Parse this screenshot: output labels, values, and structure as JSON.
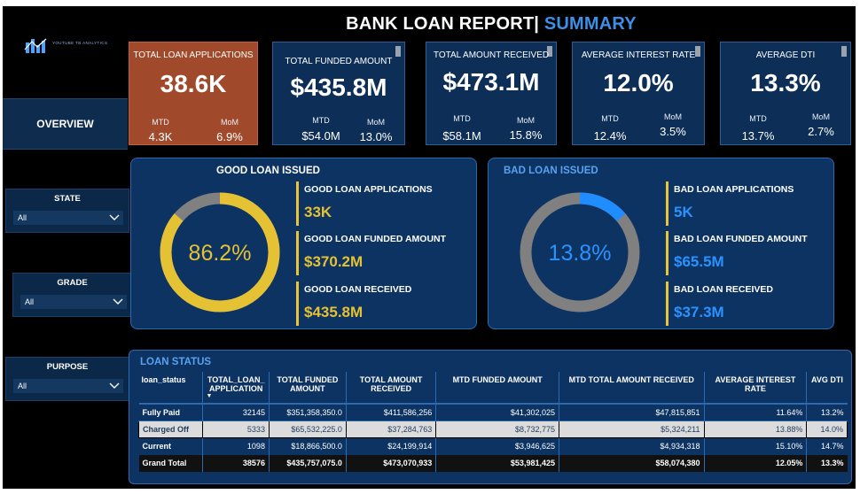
{
  "header": {
    "title_main": "BANK LOAN REPORT|",
    "title_accent": "SUMMARY"
  },
  "logo": {
    "brand_text": "YOUTUBE TB ANALYTICS"
  },
  "nav": {
    "overview_label": "OVERVIEW"
  },
  "filters": [
    {
      "label": "STATE",
      "value": "All"
    },
    {
      "label": "GRADE",
      "value": "All"
    },
    {
      "label": "PURPOSE",
      "value": "All"
    }
  ],
  "kpis": [
    {
      "label": "TOTAL LOAN APPLICATIONS",
      "value": "38.6K",
      "mtd_label": "MTD",
      "mtd_value": "4.3K",
      "mom_label": "MoM",
      "mom_value": "6.9%"
    },
    {
      "label": "TOTAL FUNDED AMOUNT",
      "value": "$435.8M",
      "mtd_label": "MTD",
      "mtd_value": "$54.0M",
      "mom_label": "MoM",
      "mom_value": "13.0%"
    },
    {
      "label": "TOTAL  AMOUNT RECEIVED",
      "value": "$473.1M",
      "mtd_label": "MTD",
      "mtd_value": "$58.1M",
      "mom_label": "MoM",
      "mom_value": "15.8%"
    },
    {
      "label": "AVERAGE INTEREST RATE",
      "value": "12.0%",
      "mtd_label": "MTD",
      "mtd_value": "12.4%",
      "mom_label": "MoM",
      "mom_value": "3.5%"
    },
    {
      "label": "AVERAGE DTI",
      "value": "13.3%",
      "mtd_label": "MTD",
      "mtd_value": "13.7%",
      "mom_label": "MoM",
      "mom_value": "2.7%"
    }
  ],
  "good_loan": {
    "title": "GOOD LOAN ISSUED",
    "percent_label": "86.2%",
    "percent": 86.2,
    "ring_color": "#e5c234",
    "rest_color": "#808080",
    "metrics": [
      {
        "label": "GOOD LOAN APPLICATIONS",
        "value": "33K"
      },
      {
        "label": "GOOD LOAN FUNDED AMOUNT",
        "value": "$370.2M"
      },
      {
        "label": "GOOD LOAN RECEIVED",
        "value": "$435.8M"
      }
    ]
  },
  "bad_loan": {
    "title": "BAD LOAN ISSUED",
    "percent_label": "13.8%",
    "percent": 13.8,
    "ring_color": "#1f8cff",
    "rest_color": "#808080",
    "metrics": [
      {
        "label": "BAD LOAN APPLICATIONS",
        "value": "5K"
      },
      {
        "label": "BAD LOAN FUNDED AMOUNT",
        "value": "$65.5M"
      },
      {
        "label": "BAD LOAN RECEIVED",
        "value": "$37.3M"
      }
    ]
  },
  "loan_status": {
    "title": "LOAN STATUS",
    "columns": [
      "loan_status",
      "TOTAL_LOAN_\nAPPLICATION",
      "TOTAL FUNDED\nAMOUNT",
      "TOTAL AMOUNT\nRECEIVED",
      "MTD FUNDED AMOUNT",
      "MTD TOTAL AMOUNT RECEIVED",
      "AVERAGE INTEREST\nRATE",
      "AVG DTI"
    ],
    "rows": [
      [
        "Fully Paid",
        "32145",
        "$351,358,350.0",
        "$411,586,256",
        "$41,302,025",
        "$47,815,851",
        "11.64%",
        "13.2%"
      ],
      [
        "Charged Off",
        "5333",
        "$65,532,225.0",
        "$37,284,763",
        "$8,732,775",
        "$5,324,211",
        "13.88%",
        "14.0%"
      ],
      [
        "Current",
        "1098",
        "$18,866,500.0",
        "$24,199,914",
        "$3,946,625",
        "$4,934,318",
        "15.10%",
        "14.7%"
      ],
      [
        "Grand Total",
        "38576",
        "$435,757,075.0",
        "$473,070,933",
        "$53,981,425",
        "$58,074,380",
        "12.05%",
        "13.3%"
      ]
    ]
  }
}
